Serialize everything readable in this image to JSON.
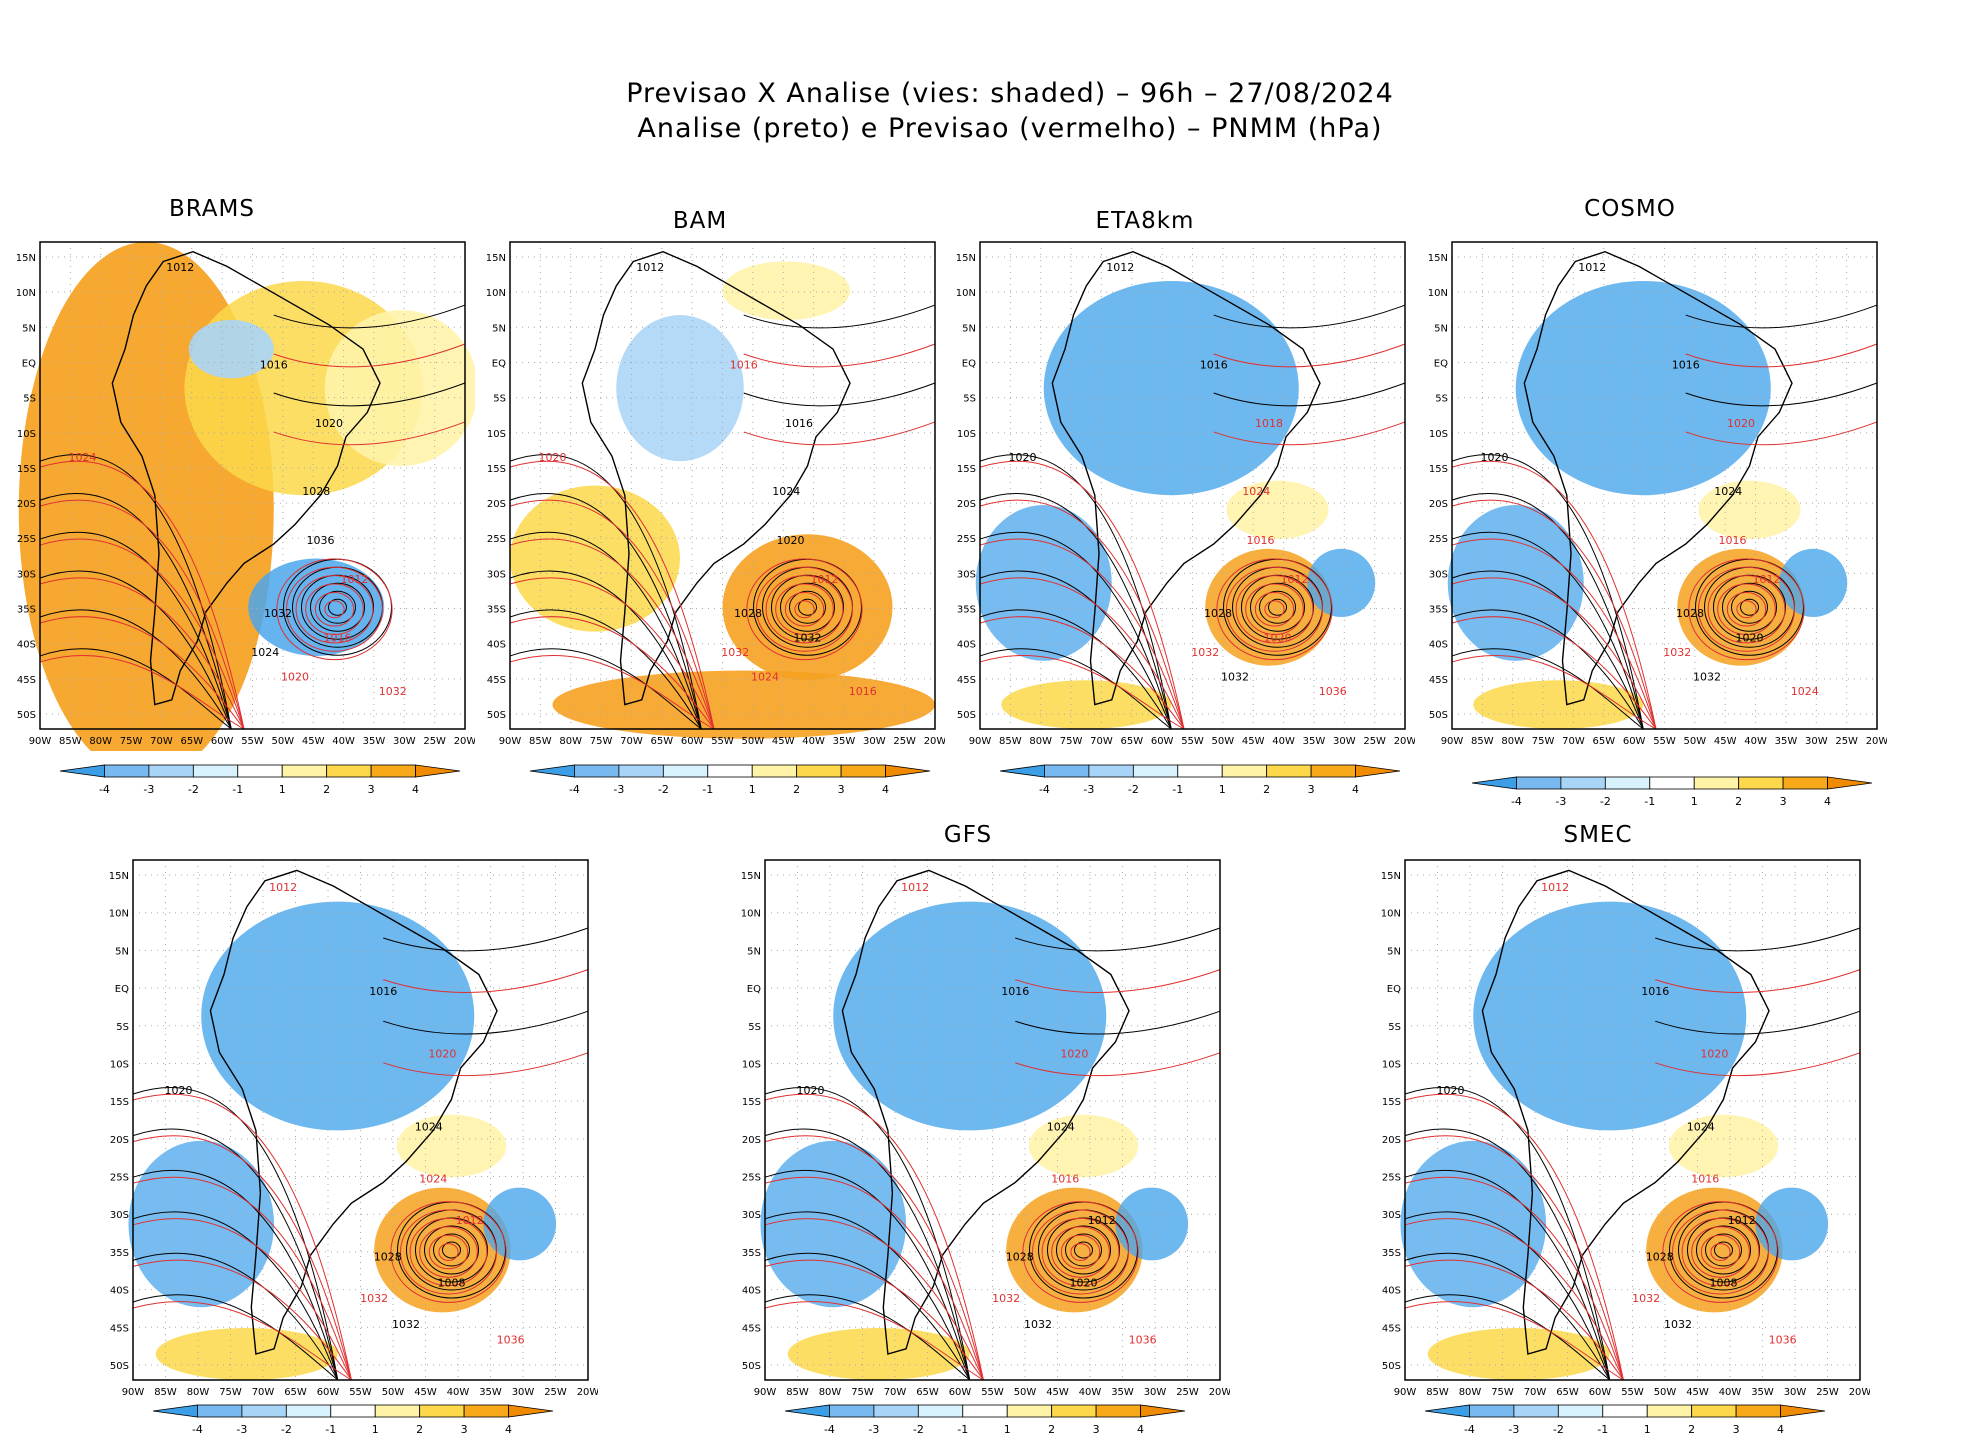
{
  "header": {
    "line1": "Previsao X Analise (vies: shaded) – 96h – 27/08/2024",
    "line2": "Analise (preto) e Previsao (vermelho) – PNMM (hPa)"
  },
  "axes": {
    "lat_labels": [
      "15N",
      "10N",
      "5N",
      "EQ",
      "5S",
      "10S",
      "15S",
      "20S",
      "25S",
      "30S",
      "35S",
      "40S",
      "45S",
      "50S"
    ],
    "lon_labels": [
      "90W",
      "85W",
      "80W",
      "75W",
      "70W",
      "65W",
      "60W",
      "55W",
      "50W",
      "45W",
      "40W",
      "35W",
      "30W",
      "25W",
      "20W"
    ]
  },
  "colorbar": {
    "ticks": [
      "-4",
      "-3",
      "-2",
      "-1",
      "1",
      "2",
      "3",
      "4"
    ],
    "colors": [
      "#3b9ee6",
      "#78b9f0",
      "#a8d4f7",
      "#d8f2fd",
      "#ffffff",
      "#fff3a8",
      "#fcd84a",
      "#f7a91a",
      "#f08a00"
    ]
  },
  "colors": {
    "analysis": "#000000",
    "forecast": "#e03030",
    "warm": "#f6a11f",
    "cool": "#4aa6ec"
  },
  "panels": [
    {
      "title": "BRAMS",
      "bias": "warm",
      "labels": [
        {
          "t": "1012",
          "c": "a"
        },
        {
          "t": "1016",
          "c": "a"
        },
        {
          "t": "1020",
          "c": "a"
        },
        {
          "t": "1024",
          "c": "f"
        },
        {
          "t": "1028",
          "c": "a"
        },
        {
          "t": "1032",
          "c": "a"
        },
        {
          "t": "1036",
          "c": "a"
        },
        {
          "t": "1012",
          "c": "f"
        },
        {
          "t": "1016",
          "c": "f"
        },
        {
          "t": "1020",
          "c": "f"
        },
        {
          "t": "1024",
          "c": "a"
        },
        {
          "t": "1032",
          "c": "f"
        }
      ]
    },
    {
      "title": "BAM",
      "bias": "mixed",
      "labels": [
        {
          "t": "1012",
          "c": "a"
        },
        {
          "t": "1016",
          "c": "f"
        },
        {
          "t": "1016",
          "c": "a"
        },
        {
          "t": "1020",
          "c": "f"
        },
        {
          "t": "1024",
          "c": "a"
        },
        {
          "t": "1028",
          "c": "a"
        },
        {
          "t": "1020",
          "c": "a"
        },
        {
          "t": "1012",
          "c": "f"
        },
        {
          "t": "1032",
          "c": "a"
        },
        {
          "t": "1024",
          "c": "f"
        },
        {
          "t": "1032",
          "c": "f"
        },
        {
          "t": "1016",
          "c": "f"
        }
      ]
    },
    {
      "title": "ETA8km",
      "bias": "cool",
      "labels": [
        {
          "t": "1012",
          "c": "a"
        },
        {
          "t": "1016",
          "c": "a"
        },
        {
          "t": "1018",
          "c": "f"
        },
        {
          "t": "1020",
          "c": "a"
        },
        {
          "t": "1024",
          "c": "f"
        },
        {
          "t": "1028",
          "c": "a"
        },
        {
          "t": "1016",
          "c": "f"
        },
        {
          "t": "1012",
          "c": "f"
        },
        {
          "t": "1020",
          "c": "f"
        },
        {
          "t": "1032",
          "c": "a"
        },
        {
          "t": "1032",
          "c": "f"
        },
        {
          "t": "1036",
          "c": "f"
        }
      ]
    },
    {
      "title": "COSMO",
      "bias": "cool",
      "labels": [
        {
          "t": "1012",
          "c": "a"
        },
        {
          "t": "1016",
          "c": "a"
        },
        {
          "t": "1020",
          "c": "f"
        },
        {
          "t": "1020",
          "c": "a"
        },
        {
          "t": "1024",
          "c": "a"
        },
        {
          "t": "1028",
          "c": "a"
        },
        {
          "t": "1016",
          "c": "f"
        },
        {
          "t": "1012",
          "c": "f"
        },
        {
          "t": "1020",
          "c": "a"
        },
        {
          "t": "1032",
          "c": "a"
        },
        {
          "t": "1032",
          "c": "f"
        },
        {
          "t": "1024",
          "c": "f"
        }
      ]
    },
    {
      "title": "",
      "bias": "cool",
      "labels": [
        {
          "t": "1012",
          "c": "f"
        },
        {
          "t": "1016",
          "c": "a"
        },
        {
          "t": "1020",
          "c": "f"
        },
        {
          "t": "1020",
          "c": "a"
        },
        {
          "t": "1024",
          "c": "a"
        },
        {
          "t": "1028",
          "c": "a"
        },
        {
          "t": "1024",
          "c": "f"
        },
        {
          "t": "1012",
          "c": "f"
        },
        {
          "t": "1008",
          "c": "a"
        },
        {
          "t": "1032",
          "c": "a"
        },
        {
          "t": "1032",
          "c": "f"
        },
        {
          "t": "1036",
          "c": "f"
        }
      ]
    },
    {
      "title": "GFS",
      "bias": "cool",
      "labels": [
        {
          "t": "1012",
          "c": "f"
        },
        {
          "t": "1016",
          "c": "a"
        },
        {
          "t": "1020",
          "c": "f"
        },
        {
          "t": "1020",
          "c": "a"
        },
        {
          "t": "1024",
          "c": "a"
        },
        {
          "t": "1028",
          "c": "a"
        },
        {
          "t": "1016",
          "c": "f"
        },
        {
          "t": "1012",
          "c": "a"
        },
        {
          "t": "1020",
          "c": "a"
        },
        {
          "t": "1032",
          "c": "a"
        },
        {
          "t": "1032",
          "c": "f"
        },
        {
          "t": "1036",
          "c": "f"
        }
      ]
    },
    {
      "title": "SMEC",
      "bias": "cool",
      "labels": [
        {
          "t": "1012",
          "c": "f"
        },
        {
          "t": "1016",
          "c": "a"
        },
        {
          "t": "1020",
          "c": "f"
        },
        {
          "t": "1020",
          "c": "a"
        },
        {
          "t": "1024",
          "c": "a"
        },
        {
          "t": "1028",
          "c": "a"
        },
        {
          "t": "1016",
          "c": "f"
        },
        {
          "t": "1012",
          "c": "a"
        },
        {
          "t": "1008",
          "c": "a"
        },
        {
          "t": "1032",
          "c": "a"
        },
        {
          "t": "1032",
          "c": "f"
        },
        {
          "t": "1036",
          "c": "f"
        }
      ]
    }
  ]
}
